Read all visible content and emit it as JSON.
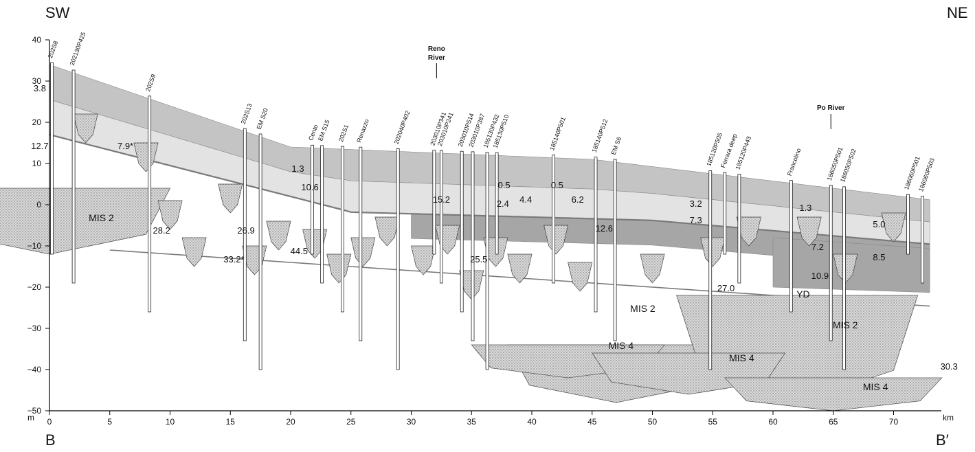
{
  "corners": {
    "top_left": "SW",
    "top_right": "NE",
    "bottom_left": "B",
    "bottom_right": "B′"
  },
  "axes": {
    "y_unit": "m",
    "x_unit": "km",
    "y_ticks": [
      40,
      30,
      20,
      10,
      0,
      -10,
      -20,
      -30,
      -40,
      -50
    ],
    "y_tick_labels": [
      "40",
      "30",
      "20",
      "10",
      "0",
      "−10",
      "−20",
      "−30",
      "−40",
      "−50"
    ],
    "x_ticks": [
      0,
      5,
      10,
      15,
      20,
      25,
      30,
      35,
      40,
      45,
      50,
      55,
      60,
      65,
      70
    ],
    "x_tick_labels": [
      "0",
      "5",
      "10",
      "15",
      "20",
      "25",
      "30",
      "35",
      "40",
      "45",
      "50",
      "55",
      "60",
      "65",
      "70"
    ]
  },
  "rivers": [
    {
      "line1": "Reno",
      "line2": "River",
      "x_km": 32.1
    },
    {
      "line1": "Po River",
      "line2": "",
      "x_km": 64.8
    }
  ],
  "wells": [
    {
      "name": "202S8",
      "x_km": 0.2
    },
    {
      "name": "202130P425",
      "x_km": 2.0
    },
    {
      "name": "202S9",
      "x_km": 8.3
    },
    {
      "name": "202S13",
      "x_km": 16.2
    },
    {
      "name": "EM S20",
      "x_km": 17.5
    },
    {
      "name": "Cento",
      "x_km": 21.8
    },
    {
      "name": "EM S15",
      "x_km": 22.6
    },
    {
      "name": "202S1",
      "x_km": 24.3
    },
    {
      "name": "Renazzo",
      "x_km": 25.8
    },
    {
      "name": "202040P402",
      "x_km": 28.9
    },
    {
      "name": "203010P341",
      "x_km": 31.9
    },
    {
      "name": "203010P241",
      "x_km": 32.5
    },
    {
      "name": "203010P514",
      "x_km": 34.2
    },
    {
      "name": "203010P387",
      "x_km": 35.1
    },
    {
      "name": "185130P432",
      "x_km": 36.3
    },
    {
      "name": "185130P510",
      "x_km": 37.1
    },
    {
      "name": "185140P501",
      "x_km": 41.8
    },
    {
      "name": "185140P512",
      "x_km": 45.3
    },
    {
      "name": "EM S6",
      "x_km": 46.9
    },
    {
      "name": "185120P505",
      "x_km": 54.8
    },
    {
      "name": "Ferrara deep",
      "x_km": 56.0
    },
    {
      "name": "185120P443",
      "x_km": 57.2
    },
    {
      "name": "Francolino",
      "x_km": 61.5
    },
    {
      "name": "186050P501",
      "x_km": 64.8
    },
    {
      "name": "186050P502",
      "x_km": 65.9
    },
    {
      "name": "186060P501",
      "x_km": 71.2
    },
    {
      "name": "186060P503",
      "x_km": 72.4
    }
  ],
  "unit_labels": [
    {
      "text": "MIS 2",
      "x_km": 4.3,
      "y_m": -4
    },
    {
      "text": "MIS 2",
      "x_km": 49.2,
      "y_m": -26
    },
    {
      "text": "MIS 2",
      "x_km": 66.0,
      "y_m": -30
    },
    {
      "text": "MIS 4",
      "x_km": 47.4,
      "y_m": -35
    },
    {
      "text": "MIS 4",
      "x_km": 57.4,
      "y_m": -38
    },
    {
      "text": "MIS 4",
      "x_km": 68.5,
      "y_m": -45
    },
    {
      "text": "YD",
      "x_km": 62.5,
      "y_m": -22.5
    }
  ],
  "ages": [
    {
      "text": "3.8",
      "x_km": -0.8,
      "y_m": 27.5
    },
    {
      "text": "12.7",
      "x_km": -0.8,
      "y_m": 13.5
    },
    {
      "text": "7.9*",
      "x_km": 6.3,
      "y_m": 13.5
    },
    {
      "text": "28.2",
      "x_km": 9.3,
      "y_m": -7
    },
    {
      "text": "1.3",
      "x_km": 20.6,
      "y_m": 8
    },
    {
      "text": "10.6",
      "x_km": 21.6,
      "y_m": 3.5
    },
    {
      "text": "26.9",
      "x_km": 16.3,
      "y_m": -7
    },
    {
      "text": "33.2*",
      "x_km": 15.3,
      "y_m": -14
    },
    {
      "text": "44.5",
      "x_km": 20.7,
      "y_m": -12
    },
    {
      "text": "15.2",
      "x_km": 32.5,
      "y_m": 0.5
    },
    {
      "text": "0.5",
      "x_km": 37.7,
      "y_m": 4
    },
    {
      "text": "2.4",
      "x_km": 37.6,
      "y_m": -0.5
    },
    {
      "text": "4.4",
      "x_km": 39.5,
      "y_m": 0.5
    },
    {
      "text": "0.5",
      "x_km": 42.1,
      "y_m": 4
    },
    {
      "text": "6.2",
      "x_km": 43.8,
      "y_m": 0.5
    },
    {
      "text": "25.5",
      "x_km": 35.6,
      "y_m": -14
    },
    {
      "text": "12.6",
      "x_km": 46.0,
      "y_m": -6.5
    },
    {
      "text": "3.2",
      "x_km": 53.6,
      "y_m": -0.5
    },
    {
      "text": "7.3",
      "x_km": 53.6,
      "y_m": -4.5
    },
    {
      "text": "27.0",
      "x_km": 56.1,
      "y_m": -21
    },
    {
      "text": "1.3",
      "x_km": 62.7,
      "y_m": -1.5
    },
    {
      "text": "7.2",
      "x_km": 63.7,
      "y_m": -11
    },
    {
      "text": "10.9",
      "x_km": 63.9,
      "y_m": -18
    },
    {
      "text": "5.0",
      "x_km": 68.8,
      "y_m": -5.5
    },
    {
      "text": "8.5",
      "x_km": 68.8,
      "y_m": -13.5
    },
    {
      "text": "30.3",
      "x_km": 74.6,
      "y_m": -40
    }
  ],
  "colors": {
    "stipple": "#b8b8b8",
    "unit_dark": "#a6a6a6",
    "unit_mid": "#c4c4c4",
    "unit_light": "#e3e3e3",
    "boundary": "#7a7a7a"
  }
}
